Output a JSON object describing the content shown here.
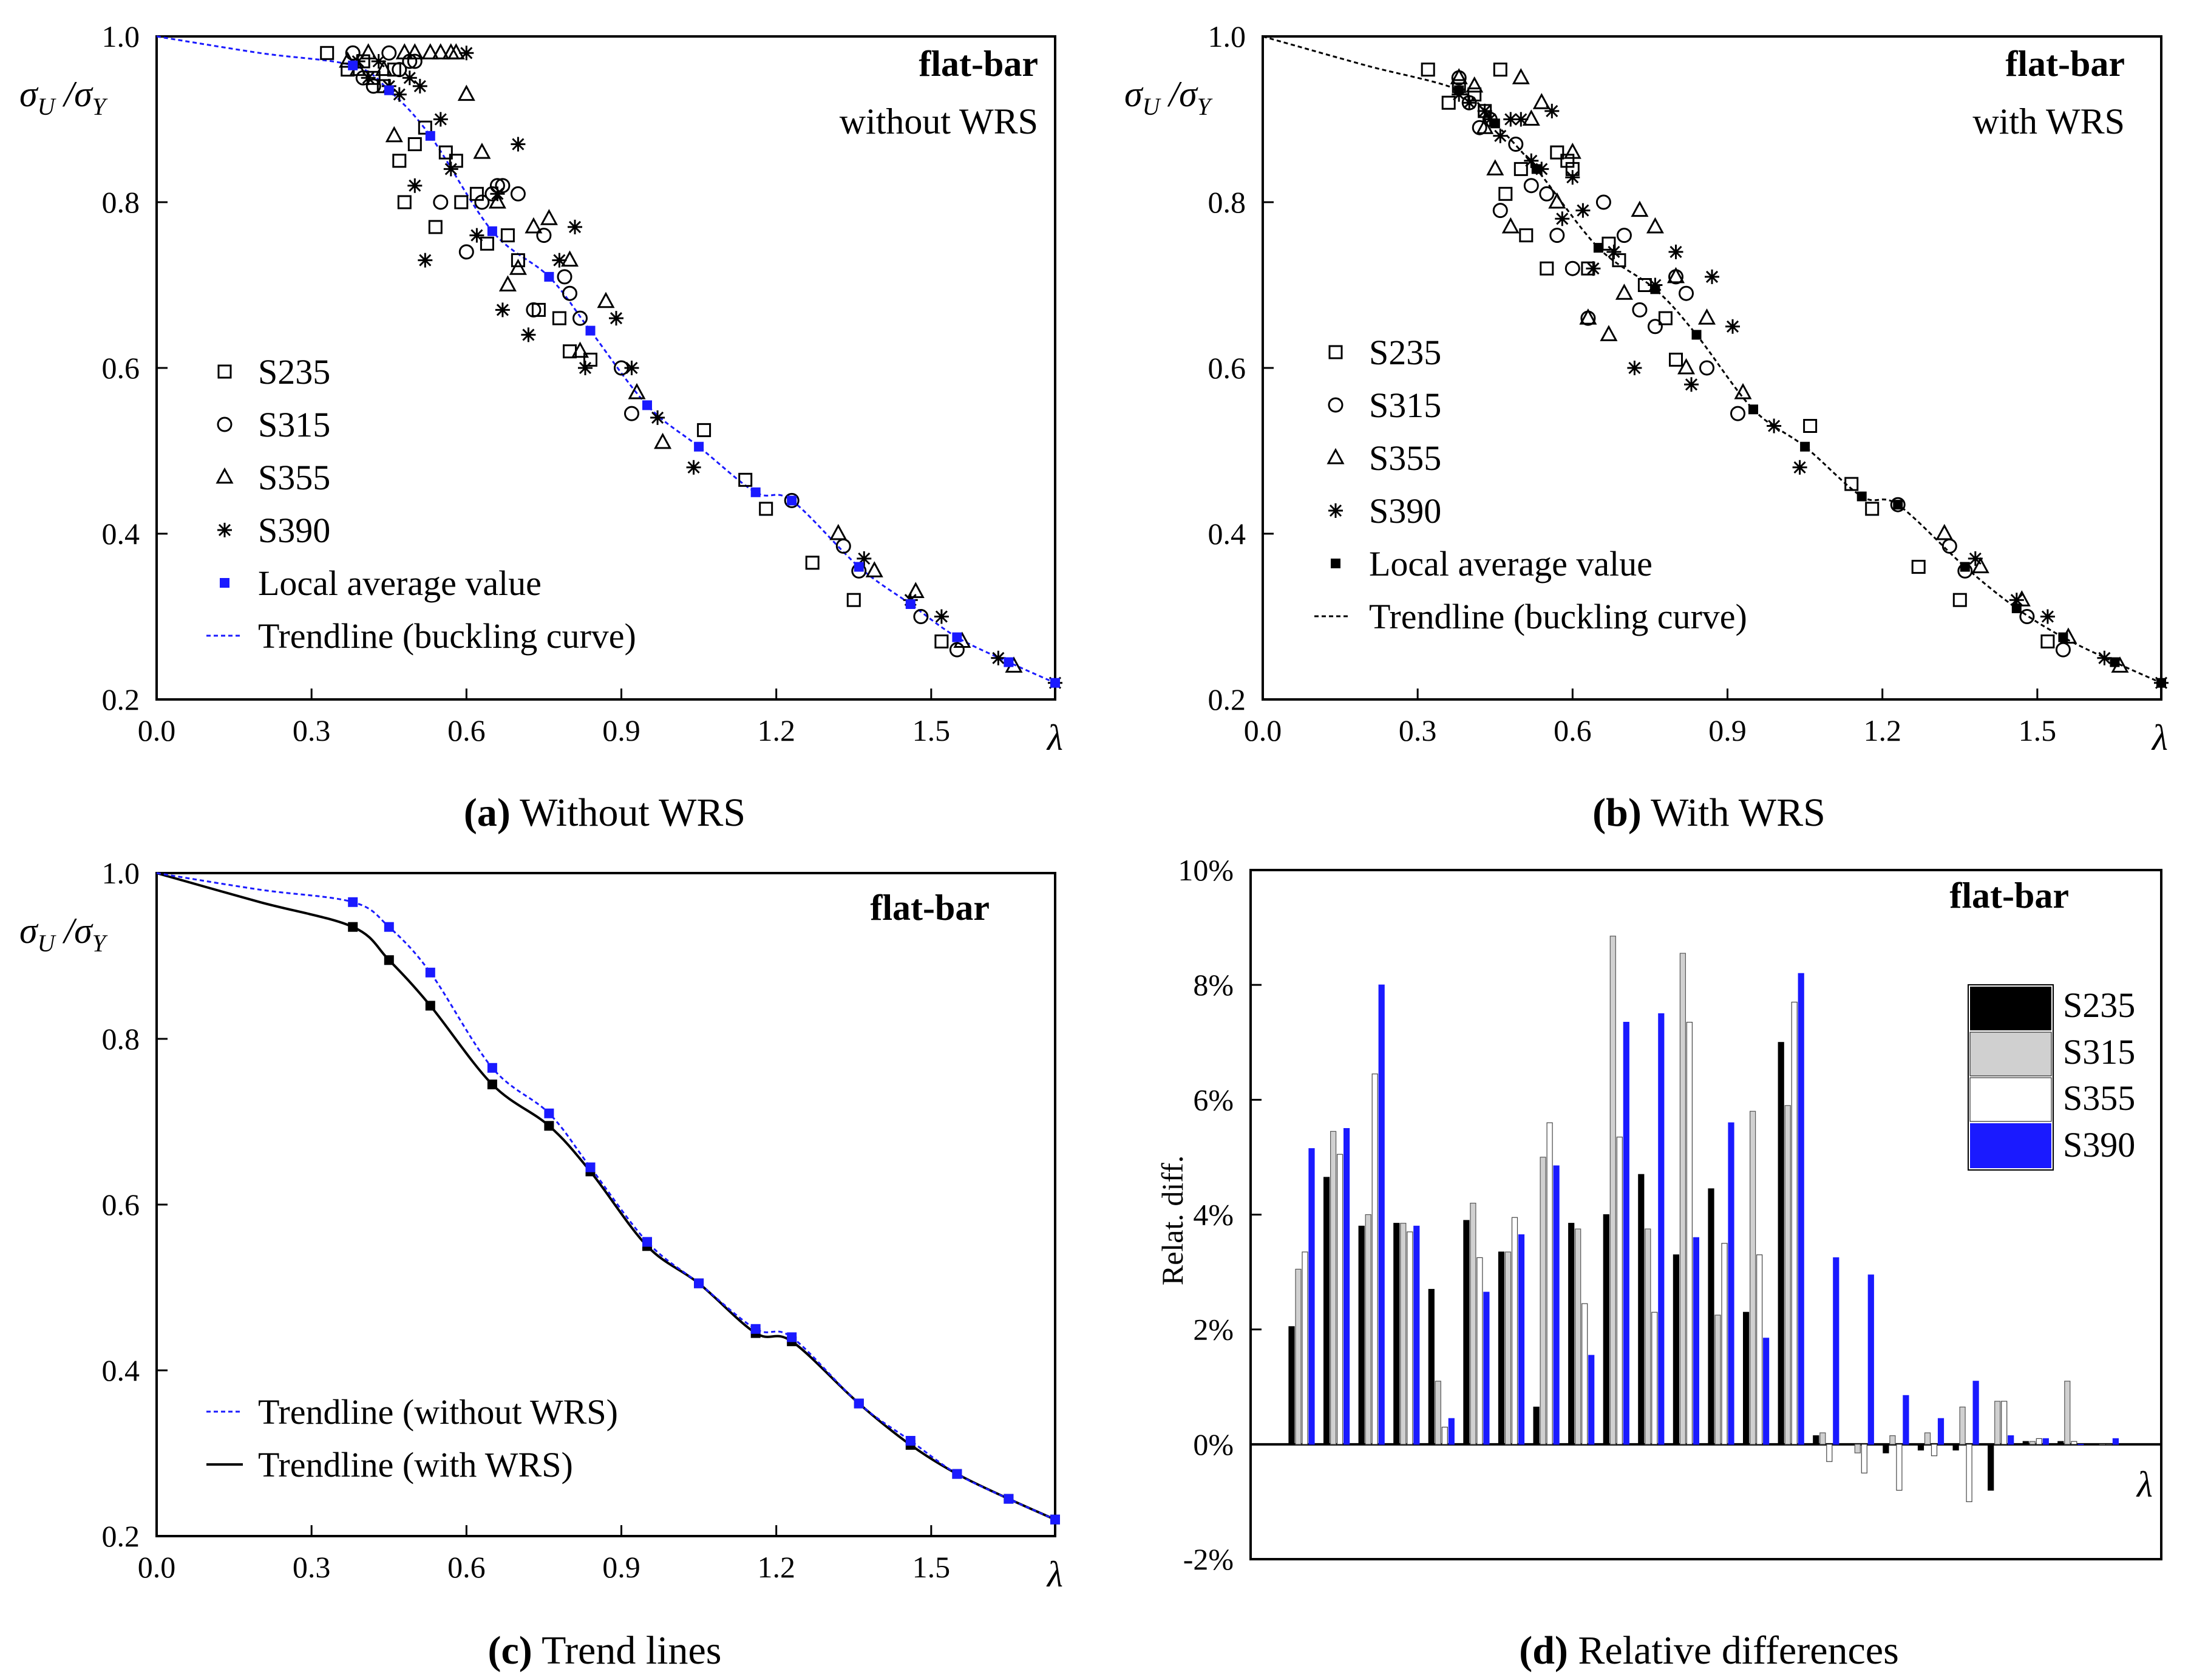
{
  "chart_data": [
    {
      "id": "a",
      "type": "scatter",
      "caption_letter": "(a)",
      "caption_text": " Without WRS",
      "title_line1": "flat-bar",
      "title_line2": "without WRS",
      "xlabel": "λ",
      "ylabel": "σU/σY",
      "xlim": [
        0,
        1.74
      ],
      "ylim": [
        0.2,
        1.0
      ],
      "xticks": [
        "0.0",
        "0.3",
        "0.6",
        "0.9",
        "1.2",
        "1.5"
      ],
      "xtick_values": [
        0,
        0.3,
        0.6,
        0.9,
        1.2,
        1.5
      ],
      "yticks": [
        "0.2",
        "0.4",
        "0.6",
        "0.8",
        "1.0"
      ],
      "ytick_values": [
        0.2,
        0.4,
        0.6,
        0.8,
        1.0
      ],
      "avg_color": "#1a1aff",
      "legend": [
        "S235",
        "S315",
        "S355",
        "S390",
        "Local average value",
        "Trendline (buckling curve)"
      ],
      "avg": {
        "x": [
          0,
          0.38,
          0.45,
          0.53,
          0.65,
          0.76,
          0.84,
          0.95,
          1.05,
          1.16,
          1.23,
          1.36,
          1.46,
          1.55,
          1.65,
          1.74
        ],
        "y": [
          1.0,
          0.965,
          0.935,
          0.88,
          0.765,
          0.71,
          0.645,
          0.555,
          0.505,
          0.45,
          0.44,
          0.36,
          0.315,
          0.275,
          0.245,
          0.22
        ]
      },
      "trend": {
        "x": [
          0,
          0.2,
          0.38,
          0.45,
          0.53,
          0.65,
          0.76,
          0.84,
          0.95,
          1.05,
          1.16,
          1.23,
          1.36,
          1.46,
          1.55,
          1.65,
          1.74
        ],
        "y": [
          1.0,
          0.98,
          0.965,
          0.935,
          0.88,
          0.765,
          0.71,
          0.645,
          0.555,
          0.505,
          0.45,
          0.44,
          0.36,
          0.315,
          0.275,
          0.245,
          0.22
        ]
      },
      "series": [
        {
          "name": "S235",
          "x": [
            0.33,
            0.37,
            0.4,
            0.42,
            0.44,
            0.46,
            0.47,
            0.48,
            0.5,
            0.52,
            0.54,
            0.56,
            0.58,
            0.59,
            0.62,
            0.64,
            0.68,
            0.7,
            0.74,
            0.78,
            0.8,
            0.84,
            1.06,
            1.14,
            1.18,
            1.27,
            1.35,
            1.52
          ],
          "y": [
            0.98,
            0.96,
            0.97,
            0.95,
            0.94,
            0.96,
            0.85,
            0.8,
            0.87,
            0.89,
            0.77,
            0.86,
            0.85,
            0.8,
            0.81,
            0.75,
            0.76,
            0.73,
            0.67,
            0.66,
            0.62,
            0.61,
            0.525,
            0.465,
            0.43,
            0.365,
            0.32,
            0.27
          ]
        },
        {
          "name": "S315",
          "x": [
            0.38,
            0.4,
            0.42,
            0.45,
            0.47,
            0.49,
            0.5,
            0.55,
            0.6,
            0.63,
            0.65,
            0.66,
            0.67,
            0.7,
            0.73,
            0.75,
            0.79,
            0.8,
            0.82,
            0.9,
            0.92,
            1.23,
            1.33,
            1.36,
            1.48,
            1.55
          ],
          "y": [
            0.98,
            0.95,
            0.94,
            0.98,
            0.96,
            0.97,
            0.97,
            0.8,
            0.74,
            0.8,
            0.81,
            0.82,
            0.82,
            0.81,
            0.67,
            0.76,
            0.71,
            0.69,
            0.66,
            0.6,
            0.545,
            0.44,
            0.385,
            0.355,
            0.3,
            0.26
          ]
        },
        {
          "name": "S355",
          "x": [
            0.37,
            0.39,
            0.41,
            0.44,
            0.46,
            0.48,
            0.5,
            0.53,
            0.55,
            0.57,
            0.58,
            0.6,
            0.63,
            0.66,
            0.68,
            0.7,
            0.73,
            0.76,
            0.8,
            0.82,
            0.87,
            0.93,
            0.98,
            1.32,
            1.39,
            1.47,
            1.56,
            1.66
          ],
          "y": [
            0.97,
            0.96,
            0.98,
            0.96,
            0.88,
            0.98,
            0.98,
            0.98,
            0.98,
            0.98,
            0.98,
            0.93,
            0.86,
            0.8,
            0.7,
            0.72,
            0.77,
            0.78,
            0.73,
            0.62,
            0.68,
            0.57,
            0.51,
            0.4,
            0.355,
            0.33,
            0.27,
            0.24
          ]
        },
        {
          "name": "S390",
          "x": [
            0.39,
            0.41,
            0.43,
            0.45,
            0.47,
            0.49,
            0.5,
            0.51,
            0.52,
            0.55,
            0.57,
            0.6,
            0.62,
            0.66,
            0.67,
            0.7,
            0.72,
            0.78,
            0.81,
            0.83,
            0.89,
            0.92,
            0.97,
            1.04,
            1.37,
            1.46,
            1.52,
            1.63,
            1.74
          ],
          "y": [
            0.97,
            0.95,
            0.97,
            0.94,
            0.93,
            0.95,
            0.82,
            0.94,
            0.73,
            0.9,
            0.84,
            0.98,
            0.76,
            0.81,
            0.67,
            0.87,
            0.64,
            0.73,
            0.77,
            0.6,
            0.66,
            0.6,
            0.54,
            0.48,
            0.37,
            0.32,
            0.3,
            0.25,
            0.22
          ]
        }
      ]
    },
    {
      "id": "b",
      "type": "scatter",
      "caption_letter": "(b)",
      "caption_text": " With WRS",
      "title_line1": "flat-bar",
      "title_line2": "with WRS",
      "xlabel": "λ",
      "ylabel": "σU/σY",
      "xlim": [
        0,
        1.74
      ],
      "ylim": [
        0.2,
        1.0
      ],
      "xticks": [
        "0.0",
        "0.3",
        "0.6",
        "0.9",
        "1.2",
        "1.5"
      ],
      "xtick_values": [
        0,
        0.3,
        0.6,
        0.9,
        1.2,
        1.5
      ],
      "yticks": [
        "0.2",
        "0.4",
        "0.6",
        "0.8",
        "1.0"
      ],
      "ytick_values": [
        0.2,
        0.4,
        0.6,
        0.8,
        1.0
      ],
      "avg_color": "#000000",
      "legend": [
        "S235",
        "S315",
        "S355",
        "S390",
        "Local average value",
        "Trendline (buckling curve)"
      ],
      "avg": {
        "x": [
          0,
          0.38,
          0.45,
          0.53,
          0.65,
          0.76,
          0.84,
          0.95,
          1.05,
          1.16,
          1.23,
          1.36,
          1.46,
          1.55,
          1.65,
          1.74
        ],
        "y": [
          1.0,
          0.935,
          0.895,
          0.84,
          0.745,
          0.695,
          0.64,
          0.55,
          0.505,
          0.445,
          0.435,
          0.36,
          0.31,
          0.275,
          0.245,
          0.22
        ]
      },
      "trend": {
        "x": [
          0,
          0.2,
          0.38,
          0.45,
          0.53,
          0.65,
          0.76,
          0.84,
          0.95,
          1.05,
          1.16,
          1.23,
          1.36,
          1.46,
          1.55,
          1.65,
          1.74
        ],
        "y": [
          1.0,
          0.965,
          0.935,
          0.895,
          0.84,
          0.745,
          0.695,
          0.64,
          0.55,
          0.505,
          0.445,
          0.435,
          0.36,
          0.31,
          0.275,
          0.245,
          0.22
        ]
      },
      "series": [
        {
          "name": "S235",
          "x": [
            0.32,
            0.36,
            0.38,
            0.41,
            0.43,
            0.46,
            0.47,
            0.5,
            0.51,
            0.55,
            0.57,
            0.59,
            0.6,
            0.63,
            0.67,
            0.69,
            0.74,
            0.78,
            0.8,
            1.06,
            1.14,
            1.18,
            1.27,
            1.35,
            1.52
          ],
          "y": [
            0.96,
            0.92,
            0.94,
            0.93,
            0.91,
            0.96,
            0.81,
            0.84,
            0.76,
            0.72,
            0.86,
            0.85,
            0.84,
            0.72,
            0.75,
            0.73,
            0.7,
            0.66,
            0.61,
            0.53,
            0.46,
            0.43,
            0.36,
            0.32,
            0.27
          ]
        },
        {
          "name": "S315",
          "x": [
            0.38,
            0.4,
            0.42,
            0.44,
            0.46,
            0.49,
            0.52,
            0.55,
            0.57,
            0.6,
            0.63,
            0.66,
            0.7,
            0.73,
            0.76,
            0.8,
            0.82,
            0.86,
            0.92,
            1.23,
            1.33,
            1.36,
            1.48,
            1.55
          ],
          "y": [
            0.95,
            0.92,
            0.89,
            0.9,
            0.79,
            0.87,
            0.82,
            0.81,
            0.76,
            0.72,
            0.66,
            0.8,
            0.76,
            0.67,
            0.65,
            0.71,
            0.69,
            0.6,
            0.545,
            0.435,
            0.385,
            0.355,
            0.3,
            0.26
          ]
        },
        {
          "name": "S355",
          "x": [
            0.38,
            0.41,
            0.43,
            0.45,
            0.48,
            0.5,
            0.52,
            0.54,
            0.57,
            0.6,
            0.63,
            0.67,
            0.7,
            0.73,
            0.76,
            0.8,
            0.82,
            0.86,
            0.93,
            1.32,
            1.39,
            1.47,
            1.56,
            1.66
          ],
          "y": [
            0.95,
            0.94,
            0.89,
            0.84,
            0.77,
            0.95,
            0.9,
            0.92,
            0.8,
            0.86,
            0.66,
            0.64,
            0.69,
            0.79,
            0.77,
            0.71,
            0.6,
            0.66,
            0.57,
            0.4,
            0.36,
            0.32,
            0.275,
            0.24
          ]
        },
        {
          "name": "S390",
          "x": [
            0.38,
            0.4,
            0.43,
            0.44,
            0.46,
            0.48,
            0.5,
            0.52,
            0.54,
            0.56,
            0.58,
            0.6,
            0.62,
            0.64,
            0.68,
            0.72,
            0.76,
            0.8,
            0.83,
            0.87,
            0.91,
            0.99,
            1.04,
            1.38,
            1.46,
            1.52,
            1.63,
            1.74
          ],
          "y": [
            0.93,
            0.92,
            0.91,
            0.9,
            0.88,
            0.9,
            0.9,
            0.85,
            0.84,
            0.91,
            0.78,
            0.83,
            0.79,
            0.72,
            0.74,
            0.6,
            0.7,
            0.74,
            0.58,
            0.71,
            0.65,
            0.53,
            0.48,
            0.37,
            0.32,
            0.3,
            0.25,
            0.22
          ]
        }
      ]
    },
    {
      "id": "c",
      "type": "line",
      "caption_letter": "(c)",
      "caption_text": " Trend lines",
      "title_line1": "flat-bar",
      "xlabel": "λ",
      "ylabel": "σU/σY",
      "xlim": [
        0,
        1.74
      ],
      "ylim": [
        0.2,
        1.0
      ],
      "xticks": [
        "0.0",
        "0.3",
        "0.6",
        "0.9",
        "1.2",
        "1.5"
      ],
      "xtick_values": [
        0,
        0.3,
        0.6,
        0.9,
        1.2,
        1.5
      ],
      "yticks": [
        "0.2",
        "0.4",
        "0.6",
        "0.8",
        "1.0"
      ],
      "ytick_values": [
        0.2,
        0.4,
        0.6,
        0.8,
        1.0
      ],
      "legend": [
        "Trendline (without WRS)",
        "Trendline (with WRS)"
      ],
      "series": [
        {
          "name": "Trendline (without WRS)",
          "color": "#1a1aff",
          "x": [
            0,
            0.2,
            0.38,
            0.45,
            0.53,
            0.65,
            0.76,
            0.84,
            0.95,
            1.05,
            1.16,
            1.23,
            1.36,
            1.46,
            1.55,
            1.65,
            1.74
          ],
          "y": [
            1.0,
            0.98,
            0.965,
            0.935,
            0.88,
            0.765,
            0.71,
            0.645,
            0.555,
            0.505,
            0.45,
            0.44,
            0.36,
            0.315,
            0.275,
            0.245,
            0.22
          ]
        },
        {
          "name": "Trendline (with WRS)",
          "color": "#000000",
          "x": [
            0,
            0.2,
            0.38,
            0.45,
            0.53,
            0.65,
            0.76,
            0.84,
            0.95,
            1.05,
            1.16,
            1.23,
            1.36,
            1.46,
            1.55,
            1.65,
            1.74
          ],
          "y": [
            1.0,
            0.965,
            0.935,
            0.895,
            0.84,
            0.745,
            0.695,
            0.64,
            0.55,
            0.505,
            0.445,
            0.435,
            0.36,
            0.31,
            0.275,
            0.245,
            0.22
          ]
        }
      ]
    },
    {
      "id": "d",
      "type": "bar",
      "caption_letter": "(d)",
      "caption_text": " Relative differences",
      "title_line1": "flat-bar",
      "xlabel": "λ",
      "ylabel": "Relat. diff.",
      "ylim": [
        -2,
        10
      ],
      "yticks": [
        "-2%",
        "0%",
        "2%",
        "4%",
        "6%",
        "8%",
        "10%"
      ],
      "ytick_values": [
        -2,
        0,
        2,
        4,
        6,
        8,
        10
      ],
      "legend": [
        "S235",
        "S315",
        "S355",
        "S390"
      ],
      "colors": [
        "#000000",
        "#d0d0d0",
        "#ffffff",
        "#1a1aff"
      ],
      "groups": 24,
      "series": [
        {
          "name": "S235",
          "values": [
            2.05,
            4.65,
            3.8,
            3.85,
            2.7,
            3.9,
            3.35,
            0.65,
            3.85,
            4.0,
            4.7,
            3.3,
            4.45,
            2.3,
            7.0,
            0.15,
            0.0,
            -0.15,
            -0.1,
            -0.1,
            -0.8,
            0.05,
            0.05,
            0.0
          ]
        },
        {
          "name": "S315",
          "values": [
            3.05,
            5.45,
            4.0,
            3.85,
            1.1,
            4.2,
            3.35,
            5.0,
            3.75,
            8.85,
            3.75,
            8.55,
            2.25,
            5.8,
            5.9,
            0.2,
            -0.15,
            0.15,
            0.2,
            0.65,
            0.75,
            0.05,
            1.1,
            0.0
          ]
        },
        {
          "name": "S355",
          "values": [
            3.35,
            5.05,
            6.45,
            3.7,
            0.3,
            3.25,
            3.95,
            5.6,
            2.45,
            5.35,
            2.3,
            7.35,
            3.5,
            3.3,
            7.7,
            -0.3,
            -0.5,
            -0.8,
            -0.2,
            -1.0,
            0.75,
            0.1,
            0.05,
            0.0
          ]
        },
        {
          "name": "S390",
          "values": [
            5.15,
            5.5,
            8.0,
            3.8,
            0.45,
            2.65,
            3.65,
            4.85,
            1.55,
            7.35,
            7.5,
            3.6,
            5.6,
            1.85,
            8.2,
            3.25,
            2.95,
            0.85,
            0.45,
            1.1,
            0.15,
            0.1,
            0.0,
            0.1
          ]
        }
      ]
    }
  ]
}
